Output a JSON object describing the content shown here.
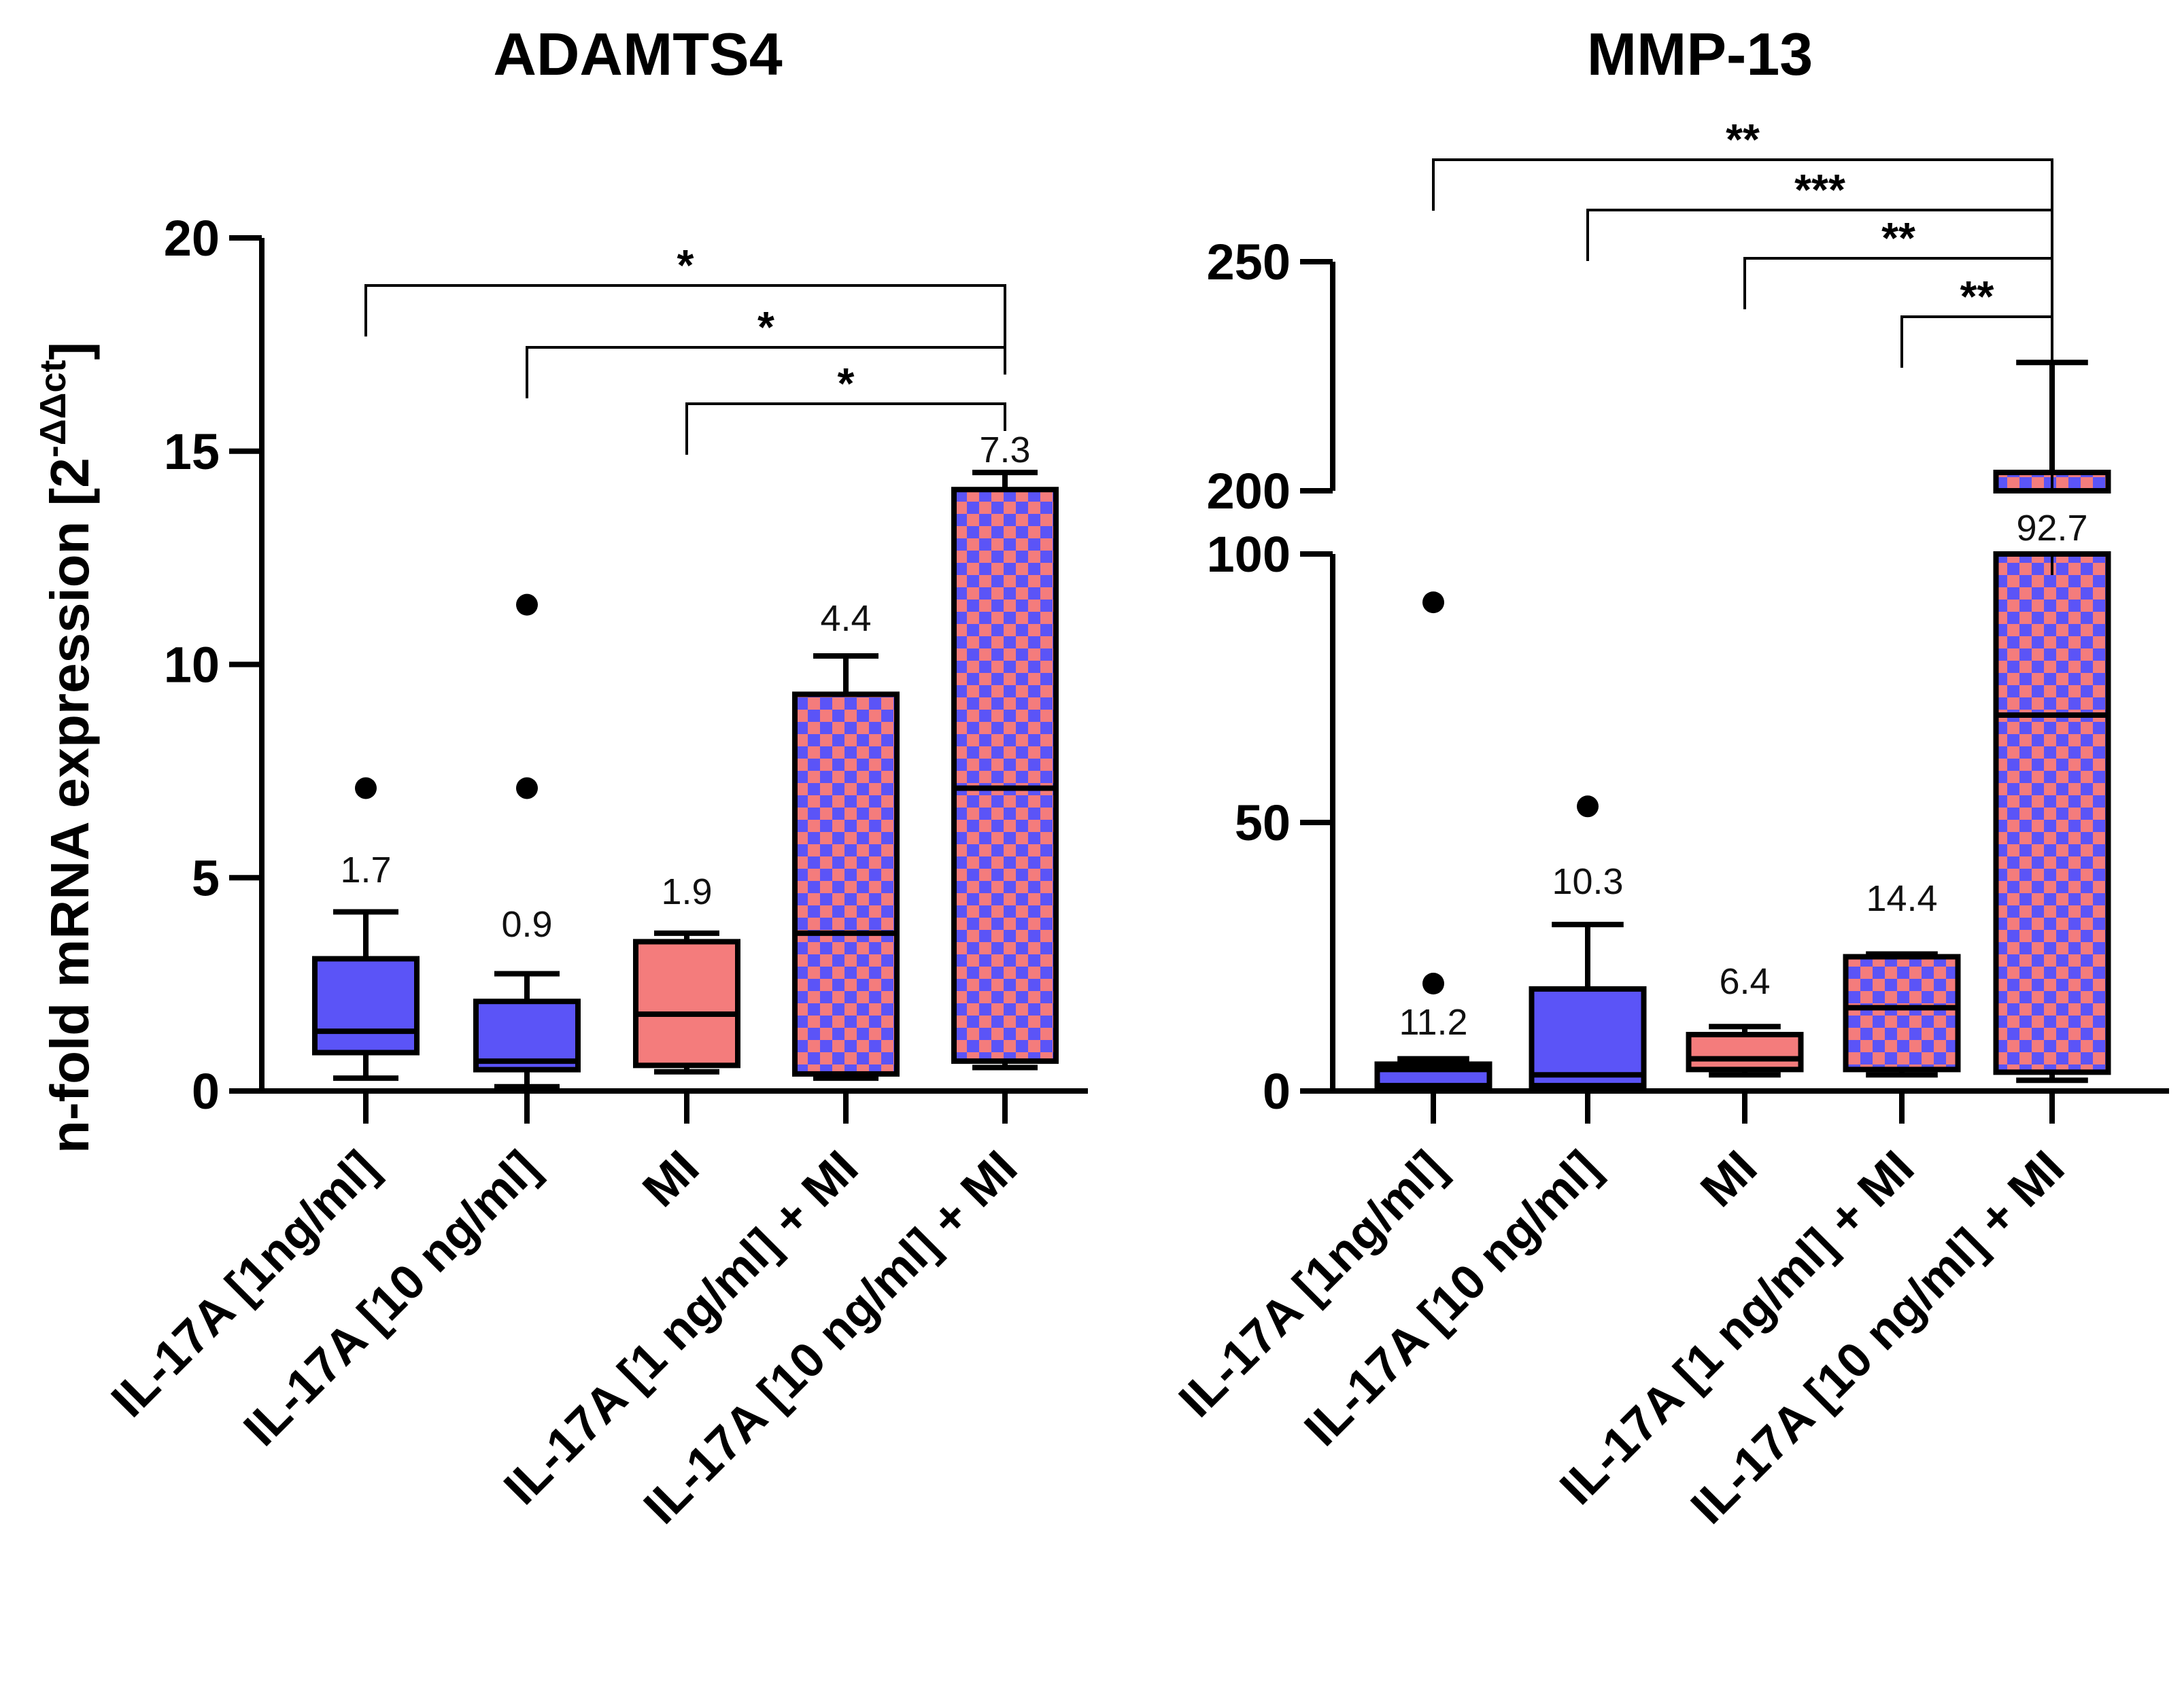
{
  "colors": {
    "blue": "#5b54f7",
    "red": "#f47c7c",
    "black": "#000000"
  },
  "y_axis_label": {
    "main": "n-fold mRNA expression [2",
    "superscript": "-ΔΔct",
    "close": "]"
  },
  "chart_data": [
    {
      "type": "box",
      "title": "ADAMTS4",
      "ylabel": "n-fold mRNA expression [2^-ΔΔct]",
      "ylim": [
        0,
        20
      ],
      "yticks": [
        0,
        5,
        10,
        15,
        20
      ],
      "categories": [
        "IL-17A [1ng/ml]",
        "IL-17A [10 ng/ml]",
        "MI",
        "IL-17A [1 ng/ml] + MI",
        "IL-17A [10 ng/ml] + MI"
      ],
      "boxes": [
        {
          "q1": 0.9,
          "median": 1.4,
          "q3": 3.1,
          "whisker_low": 0.3,
          "whisker_high": 4.2,
          "outliers": [
            7.1
          ],
          "label": "1.7",
          "fill": "blue"
        },
        {
          "q1": 0.5,
          "median": 0.7,
          "q3": 2.1,
          "whisker_low": 0.1,
          "whisker_high": 2.75,
          "outliers": [
            7.1,
            11.4
          ],
          "label": "0.9",
          "fill": "blue"
        },
        {
          "q1": 0.6,
          "median": 1.8,
          "q3": 3.5,
          "whisker_low": 0.45,
          "whisker_high": 3.7,
          "outliers": [],
          "label": "1.9",
          "fill": "red"
        },
        {
          "q1": 0.4,
          "median": 3.7,
          "q3": 9.3,
          "whisker_low": 0.3,
          "whisker_high": 10.2,
          "outliers": [],
          "label": "4.4",
          "fill": "checker"
        },
        {
          "q1": 0.7,
          "median": 7.1,
          "q3": 14.1,
          "whisker_low": 0.55,
          "whisker_high": 14.5,
          "outliers": [],
          "label": "7.3",
          "fill": "checker"
        }
      ],
      "significance": [
        {
          "from": 0,
          "to": 4,
          "y": 19.0,
          "label": "*"
        },
        {
          "from": 1,
          "to": 4,
          "y": 17.5,
          "label": "*"
        },
        {
          "from": 2,
          "to": 4,
          "y": 16.2,
          "label": "*"
        }
      ]
    },
    {
      "type": "box",
      "title": "MMP-13",
      "ylim": [
        0,
        250
      ],
      "axis_break": [
        100,
        200
      ],
      "yticks": [
        0,
        50,
        100,
        200,
        250
      ],
      "categories": [
        "IL-17A [1ng/ml]",
        "IL-17A [10 ng/ml]",
        "MI",
        "IL-17A [1 ng/ml] + MI",
        "IL-17A [10 ng/ml] + MI"
      ],
      "boxes": [
        {
          "q1": 1,
          "median": 4,
          "q3": 5,
          "whisker_low": 1,
          "whisker_high": 6,
          "outliers": [
            20,
            91
          ],
          "label": "11.2",
          "fill": "blue"
        },
        {
          "q1": 1,
          "median": 3,
          "q3": 19,
          "whisker_low": 1,
          "whisker_high": 31,
          "outliers": [
            53
          ],
          "label": "10.3",
          "fill": "blue"
        },
        {
          "q1": 4,
          "median": 6,
          "q3": 10.5,
          "whisker_low": 3,
          "whisker_high": 12,
          "outliers": [],
          "label": "6.4",
          "fill": "red"
        },
        {
          "q1": 4,
          "median": 15.5,
          "q3": 25,
          "whisker_low": 3,
          "whisker_high": 25.5,
          "outliers": [],
          "label": "14.4",
          "fill": "checker"
        },
        {
          "q1": 3.5,
          "median": 70,
          "q3": 204,
          "whisker_low": 2,
          "whisker_high": 228,
          "outliers": [],
          "label": "92.7",
          "fill": "checker"
        }
      ],
      "significance": [
        {
          "from": 0,
          "to": 4,
          "label": "**"
        },
        {
          "from": 1,
          "to": 4,
          "label": "***"
        },
        {
          "from": 2,
          "to": 4,
          "label": "**"
        },
        {
          "from": 3,
          "to": 4,
          "label": "**"
        }
      ]
    }
  ]
}
